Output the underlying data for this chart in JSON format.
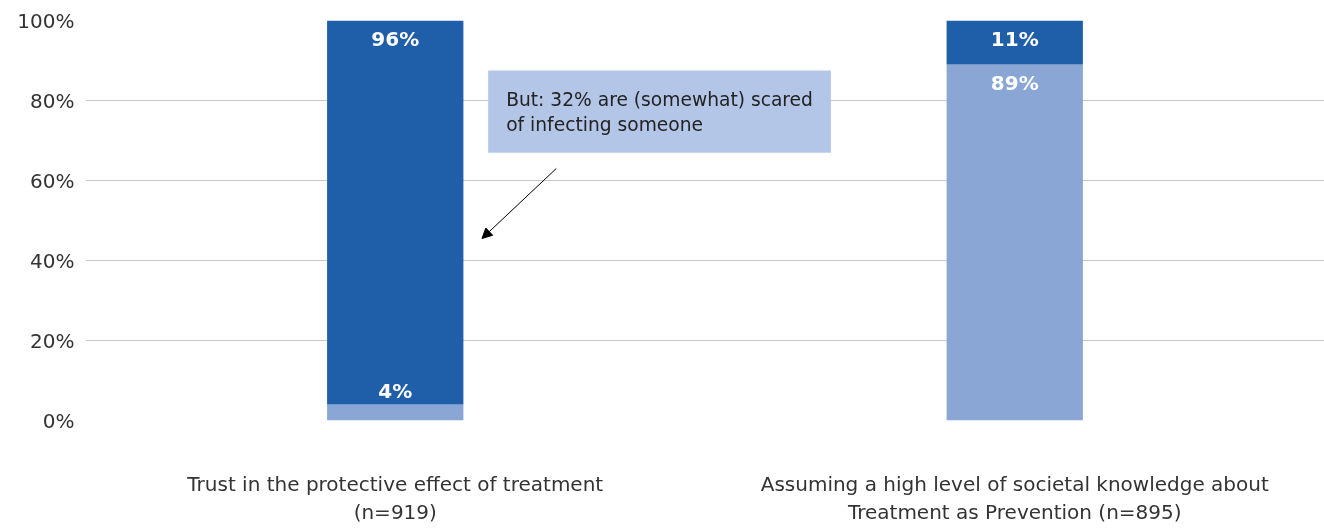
{
  "chart_data": {
    "type": "bar",
    "stacked": true,
    "categories": [
      "Trust in the protective effect of treatment (n=919)",
      "Assuming a high level of societal knowledge about Treatment as Prevention (n=895)"
    ],
    "series": [
      {
        "color": "#8aa6d4",
        "values": [
          4,
          89
        ],
        "value_labels": [
          "4%",
          "89%"
        ]
      },
      {
        "color": "#1f5ea8",
        "values": [
          96,
          11
        ],
        "value_labels": [
          "96%",
          "11%"
        ]
      }
    ],
    "ylim": [
      0,
      100
    ],
    "yticks": [
      {
        "value": 0,
        "label": "0%"
      },
      {
        "value": 20,
        "label": "20%"
      },
      {
        "value": 40,
        "label": "40%"
      },
      {
        "value": 60,
        "label": "60%"
      },
      {
        "value": 80,
        "label": "80%"
      },
      {
        "value": 100,
        "label": "100%"
      }
    ],
    "grid": "y",
    "annotations": [
      "But: 32% are (somewhat) scared of infecting someone"
    ]
  }
}
